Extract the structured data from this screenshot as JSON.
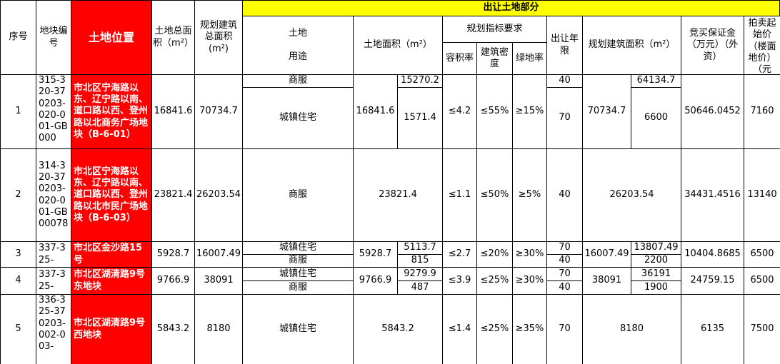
{
  "header": {
    "seq": "序号",
    "plot_no": "地块编号",
    "location": "土地位置",
    "total_land_area": "土地总面积（m²）",
    "total_build_area": "规划建筑总面积(m²)",
    "transfer_section": "出让土地部分",
    "land_use": "土地\n\n用途",
    "land_area": "土地面积（m²）",
    "plan_req": "规划指标要求",
    "far": "容积率",
    "density": "建筑密度",
    "green": "绿地率",
    "term": "出让年限",
    "build_area": "规划建筑面积（m²）",
    "deposit": "竞买保证金（万元）（外资）",
    "start_price": "拍卖起始价（楼面地价）（元"
  },
  "rows": [
    {
      "seq": "1",
      "plot_no": "315-320-370203-020-001-GB000",
      "location": "市北区宁海路以东、辽宁路以南、道口路以西、登州路以北商务广场地块（B-6-01）",
      "total_land": "16841.6",
      "total_build": "70734.7",
      "uses": [
        "商服",
        "城镇住宅"
      ],
      "land_area": "16841.6",
      "land_split": [
        "15270.2",
        "1571.4"
      ],
      "far": "≤4.2",
      "density": "≤55%",
      "green": "≥15%",
      "terms": [
        "40",
        "70"
      ],
      "build_area": "70734.7",
      "build_split": [
        "64134.7",
        "6600"
      ],
      "deposit": "50646.0452",
      "price": "7160"
    },
    {
      "seq": "2",
      "plot_no": "314-320-370203-020-001-GB00078",
      "location": "市北区宁海路以东、辽宁路以南、道口路以西、登州路以北市民广场地块（B-6-03）",
      "total_land": "23821.4",
      "total_build": "26203.54",
      "uses": [
        "商服"
      ],
      "land_area": "23821.4",
      "far": "≤1.1",
      "density": "≤50%",
      "green": "≥5%",
      "terms": [
        "40"
      ],
      "build_area": "26203.54",
      "deposit": "34431.4516",
      "price": "13140"
    },
    {
      "seq": "3",
      "plot_no": "337-325-",
      "location": "市北区金沙路15号",
      "total_land": "5928.7",
      "total_build": "16007.49",
      "uses": [
        "城镇住宅",
        "商服"
      ],
      "land_area": "5928.7",
      "land_split": [
        "5113.7",
        "815"
      ],
      "far": "≤2.7",
      "density": "≤20%",
      "green": "≥30%",
      "terms": [
        "70",
        "40"
      ],
      "build_area": "16007.49",
      "build_split": [
        "13807.49",
        "2200"
      ],
      "deposit": "10404.8685",
      "price": "6500"
    },
    {
      "seq": "4",
      "plot_no": "337-325-",
      "location": "市北区湖清路9号东地块",
      "total_land": "9766.9",
      "total_build": "38091",
      "uses": [
        "城镇住宅",
        "商服"
      ],
      "land_area": "9766.9",
      "land_split": [
        "9279.9",
        "487"
      ],
      "far": "≤3.9",
      "density": "≤25%",
      "green": "≥30%",
      "terms": [
        "70",
        "40"
      ],
      "build_area": "38091",
      "build_split": [
        "36191",
        "1900"
      ],
      "deposit": "24759.15",
      "price": "6500"
    },
    {
      "seq": "5",
      "plot_no": "336-325-370203-002-003-",
      "location": "市北区湖清路9号西地块",
      "total_land": "5843.2",
      "total_build": "8180",
      "uses": [
        "城镇住宅"
      ],
      "land_area": "5843.2",
      "far": "≤1.4",
      "density": "≤25%",
      "green": "≥35%",
      "terms": [
        "70"
      ],
      "build_area": "8180",
      "deposit": "6135",
      "price": "7500"
    }
  ]
}
